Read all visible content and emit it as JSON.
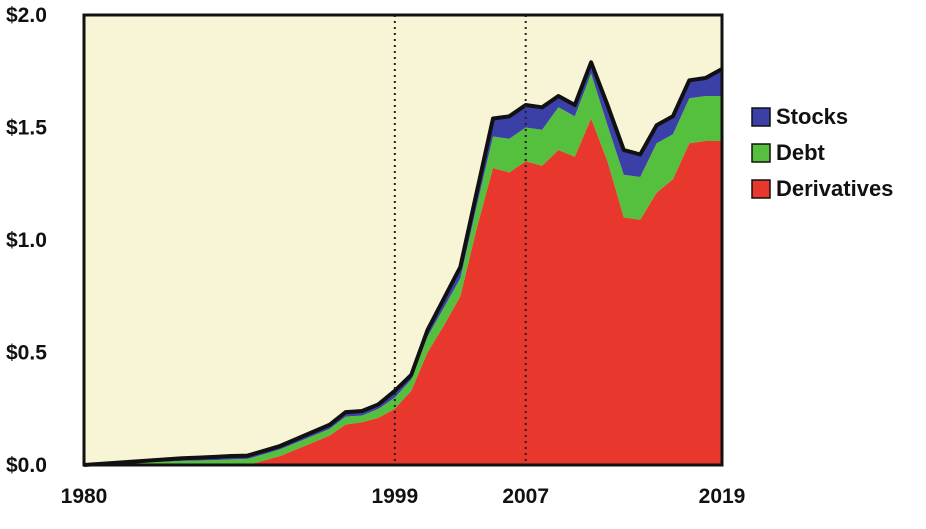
{
  "chart_data": {
    "type": "area",
    "stacked": true,
    "title": "",
    "xlabel": "",
    "ylabel": "",
    "xlim": [
      1980,
      2019
    ],
    "ylim": [
      0,
      2.0
    ],
    "y_ticks": [
      {
        "value": 0.0,
        "label": "$0.0"
      },
      {
        "value": 0.5,
        "label": "$0.5"
      },
      {
        "value": 1.0,
        "label": "$1.0"
      },
      {
        "value": 1.5,
        "label": "$1.5"
      },
      {
        "value": 2.0,
        "label": "$2.0"
      }
    ],
    "x_ticks": [
      {
        "value": 1980,
        "label": "1980"
      },
      {
        "value": 1999,
        "label": "1999"
      },
      {
        "value": 2007,
        "label": "2007"
      },
      {
        "value": 2019,
        "label": "2019"
      }
    ],
    "reference_lines": [
      1999,
      2007
    ],
    "grid": false,
    "legend_position": "right",
    "plot_background": "#f8f4d6",
    "x": [
      1980,
      1981,
      1982,
      1983,
      1984,
      1985,
      1986,
      1987,
      1988,
      1989,
      1990,
      1991,
      1992,
      1993,
      1994,
      1995,
      1996,
      1997,
      1998,
      1999,
      2000,
      2001,
      2002,
      2003,
      2004,
      2005,
      2006,
      2007,
      2008,
      2009,
      2010,
      2011,
      2012,
      2013,
      2014,
      2015,
      2016,
      2017,
      2018,
      2019
    ],
    "series": [
      {
        "name": "Derivatives",
        "color": "#e8372d",
        "values": [
          0,
          0,
          0,
          0,
          0,
          0,
          0,
          0,
          0,
          0,
          0,
          0.02,
          0.04,
          0.07,
          0.1,
          0.13,
          0.18,
          0.19,
          0.21,
          0.25,
          0.33,
          0.5,
          0.62,
          0.75,
          1.05,
          1.32,
          1.3,
          1.35,
          1.33,
          1.4,
          1.37,
          1.54,
          1.35,
          1.1,
          1.09,
          1.21,
          1.27,
          1.43,
          1.44,
          1.44
        ]
      },
      {
        "name": "Debt",
        "color": "#55c03e",
        "values": [
          0,
          0.002,
          0.005,
          0.008,
          0.012,
          0.015,
          0.018,
          0.02,
          0.022,
          0.025,
          0.027,
          0.028,
          0.03,
          0.03,
          0.03,
          0.03,
          0.035,
          0.03,
          0.04,
          0.05,
          0.05,
          0.07,
          0.08,
          0.08,
          0.1,
          0.14,
          0.15,
          0.15,
          0.16,
          0.19,
          0.18,
          0.2,
          0.16,
          0.19,
          0.19,
          0.22,
          0.2,
          0.2,
          0.2,
          0.2
        ]
      },
      {
        "name": "Stocks",
        "color": "#3b3fa8",
        "values": [
          0,
          0.003,
          0.005,
          0.007,
          0.008,
          0.01,
          0.012,
          0.013,
          0.014,
          0.015,
          0.015,
          0.015,
          0.015,
          0.016,
          0.017,
          0.018,
          0.02,
          0.02,
          0.02,
          0.03,
          0.02,
          0.03,
          0.04,
          0.05,
          0.06,
          0.08,
          0.1,
          0.1,
          0.1,
          0.05,
          0.05,
          0.05,
          0.09,
          0.11,
          0.1,
          0.08,
          0.08,
          0.08,
          0.08,
          0.12
        ]
      }
    ],
    "legend": [
      "Stocks",
      "Debt",
      "Derivatives"
    ]
  }
}
